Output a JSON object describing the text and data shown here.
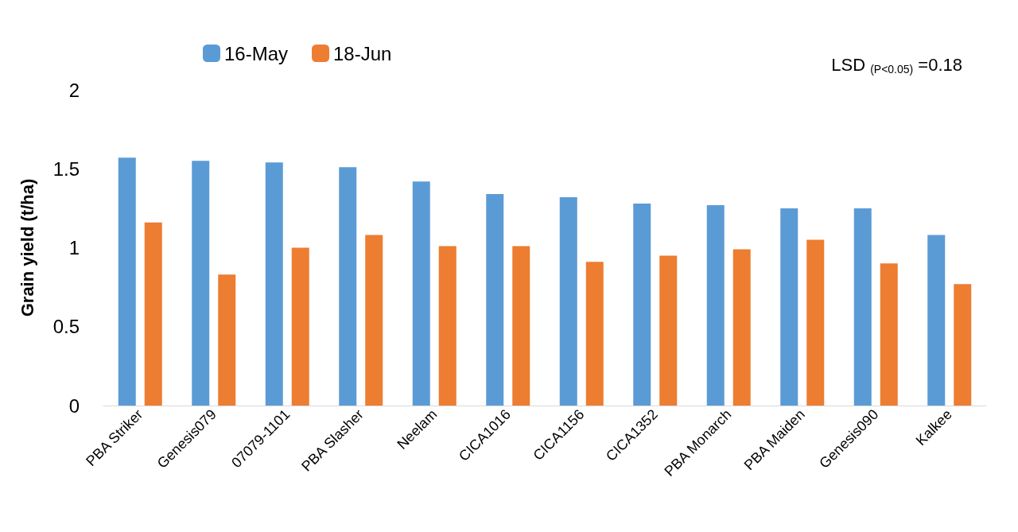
{
  "chart_data": {
    "type": "bar",
    "ylabel": "Grain yield (t/ha)",
    "categories": [
      "PBA Striker",
      "Genesis079",
      "07079-1101",
      "PBA Slasher",
      "Neelam",
      "CICA1016",
      "CICA1156",
      "CICA1352",
      "PBA Monarch",
      "PBA Maiden",
      "Genesis090",
      "Kalkee"
    ],
    "series": [
      {
        "name": "16-May",
        "color": "#5b9bd5",
        "values": [
          1.57,
          1.55,
          1.54,
          1.51,
          1.42,
          1.34,
          1.32,
          1.28,
          1.27,
          1.25,
          1.25,
          1.08
        ]
      },
      {
        "name": "18-Jun",
        "color": "#ed7d31",
        "values": [
          1.16,
          0.83,
          1.0,
          1.08,
          1.01,
          1.01,
          0.91,
          0.95,
          0.99,
          1.05,
          0.9,
          0.77
        ]
      }
    ],
    "ylim": [
      0,
      2
    ],
    "yticks": [
      0,
      0.5,
      1,
      1.5,
      2
    ],
    "grid": false,
    "legend": "top left",
    "annotations": [
      "LSD $_{(P<0.05)}$ =0.18"
    ]
  }
}
